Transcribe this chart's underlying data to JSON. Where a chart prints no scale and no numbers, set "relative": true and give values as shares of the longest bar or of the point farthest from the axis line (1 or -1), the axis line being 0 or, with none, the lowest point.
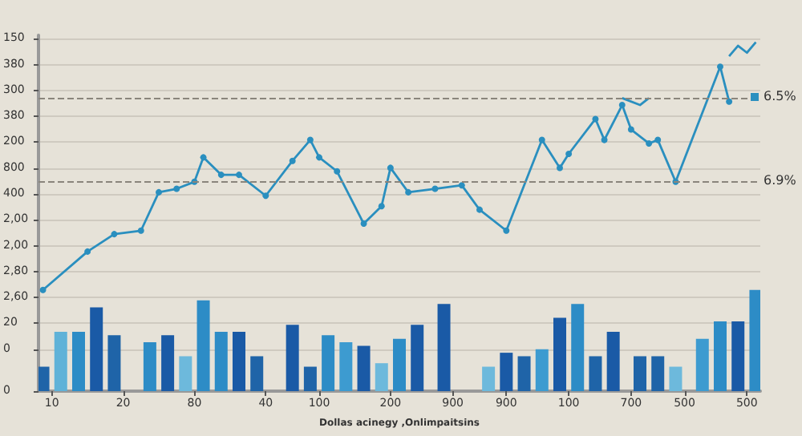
{
  "chart_data": {
    "type": "bar",
    "relative": true,
    "xlabel": "Dollas acinegy ,Onlimpaitsins",
    "categories": [
      null,
      "10",
      null,
      null,
      null,
      null,
      null,
      null,
      null,
      "20",
      null,
      null,
      null,
      null,
      null,
      null,
      null,
      "80",
      null,
      null,
      null,
      null,
      null,
      null,
      null,
      "40",
      null,
      null,
      null,
      null,
      null,
      "100",
      null,
      null,
      null,
      null,
      null,
      null,
      null,
      "200",
      null,
      null,
      null,
      null,
      null,
      null,
      "900",
      null,
      null,
      null,
      null,
      null,
      "900",
      null,
      null,
      null,
      null,
      null,
      null,
      "100",
      null,
      null,
      null,
      null,
      null,
      null,
      "700",
      null,
      null,
      null,
      null,
      null,
      "500",
      null,
      null,
      null,
      null,
      null,
      null,
      "500",
      null
    ],
    "annotations": [
      "150",
      "380",
      "300",
      "380",
      "200",
      "800",
      "400",
      "2,00",
      "2,00",
      "2,80",
      "2,60",
      "20",
      "0",
      "0",
      "6.5%",
      "6.9%"
    ],
    "grid": "y",
    "marker": "circle",
    "ref_lines": [
      {
        "axis": "y",
        "value": 0.84,
        "color": "#8a857c",
        "line_style": "dashed"
      },
      {
        "axis": "y",
        "value": 0.6,
        "color": "#8a857c",
        "line_style": "dashed"
      }
    ],
    "series": [
      {
        "values": [
          0.07,
          null,
          0.17,
          null,
          0.17,
          null,
          0.24,
          null,
          0.16,
          null,
          null,
          null,
          0.14,
          null,
          0.16,
          null,
          0.1,
          null,
          0.26,
          null,
          0.17,
          null,
          0.17,
          null,
          0.1,
          null,
          null,
          null,
          0.19,
          null,
          0.07,
          null,
          0.16,
          null,
          0.14,
          null,
          0.13,
          null,
          0.08,
          null,
          0.15,
          null,
          0.19,
          null,
          null,
          0.25,
          null,
          null,
          null,
          null,
          0.07,
          null,
          0.11,
          null,
          0.1,
          null,
          0.12,
          null,
          0.21,
          null,
          0.25,
          null,
          0.1,
          null,
          0.17,
          null,
          null,
          0.1,
          null,
          0.1,
          null,
          0.07,
          null,
          null,
          0.15,
          null,
          0.2,
          null,
          0.2,
          null,
          0.29
        ],
        "colors": [
          "#1f64a8",
          null,
          "#5fb2d8",
          null,
          "#2d8cc6",
          null,
          "#1a5aa6",
          null,
          "#1f64a8",
          null,
          null,
          null,
          "#2d8cc6",
          null,
          "#1a5aa6",
          null,
          "#6db9dc",
          null,
          "#2d8cc6",
          null,
          "#2d8cc6",
          null,
          "#1a5aa6",
          null,
          "#1f64a8",
          null,
          null,
          null,
          "#1a5aa6",
          null,
          "#1f64a8",
          null,
          "#2d8cc6",
          null,
          "#3d9bd0",
          null,
          "#1a5aa6",
          null,
          "#6db9dc",
          null,
          "#2d8cc6",
          null,
          "#1a5aa6",
          null,
          null,
          "#1a5aa6",
          null,
          null,
          null,
          null,
          "#6db9dc",
          null,
          "#1a5aa6",
          null,
          "#1f64a8",
          null,
          "#3d9bd0",
          null,
          "#1a5aa6",
          null,
          "#2d8cc6",
          null,
          "#1f64a8",
          null,
          "#1a5aa6",
          null,
          null,
          "#1f64a8",
          null,
          "#1f64a8",
          null,
          "#6db9dc",
          null,
          null,
          "#3d9bd0",
          null,
          "#2d8cc6",
          null,
          "#1a5aa6",
          null,
          "#2d8cc6"
        ]
      },
      {
        "type": "line",
        "color": "#2a8fbf",
        "values": [
          0.29,
          null,
          null,
          null,
          null,
          0.4,
          null,
          null,
          0.45,
          null,
          null,
          0.46,
          null,
          0.57,
          null,
          0.58,
          null,
          0.6,
          0.67,
          null,
          0.62,
          null,
          0.62,
          null,
          null,
          0.56,
          null,
          null,
          0.66,
          null,
          0.72,
          0.67,
          null,
          0.63,
          null,
          null,
          0.48,
          null,
          0.53,
          0.64,
          null,
          0.57,
          null,
          null,
          0.58,
          null,
          null,
          0.59,
          null,
          0.52,
          null,
          null,
          0.46,
          null,
          null,
          null,
          0.72,
          null,
          0.64,
          0.68,
          null,
          null,
          0.78,
          0.72,
          null,
          0.82,
          0.75,
          null,
          0.71,
          0.72,
          null,
          0.6,
          null,
          null,
          null,
          null,
          0.93,
          0.83,
          null,
          null,
          null
        ]
      },
      {
        "type": "line",
        "color": "#2a8fbf",
        "marker": "none",
        "values": [
          null,
          null,
          null,
          null,
          null,
          null,
          null,
          null,
          null,
          null,
          null,
          null,
          null,
          null,
          null,
          null,
          null,
          null,
          null,
          null,
          null,
          null,
          null,
          null,
          null,
          null,
          null,
          null,
          null,
          null,
          null,
          null,
          null,
          null,
          null,
          null,
          null,
          null,
          null,
          null,
          null,
          null,
          null,
          null,
          null,
          null,
          null,
          null,
          null,
          null,
          null,
          null,
          null,
          null,
          null,
          null,
          null,
          null,
          null,
          null,
          null,
          null,
          null,
          null,
          null,
          0.84,
          null,
          0.82,
          0.84,
          null,
          null,
          null,
          null,
          null,
          null,
          null,
          null,
          null,
          null,
          null,
          null
        ]
      },
      {
        "type": "line",
        "color": "#2a8fbf",
        "marker": "none",
        "values": [
          null,
          null,
          null,
          null,
          null,
          null,
          null,
          null,
          null,
          null,
          null,
          null,
          null,
          null,
          null,
          null,
          null,
          null,
          null,
          null,
          null,
          null,
          null,
          null,
          null,
          null,
          null,
          null,
          null,
          null,
          null,
          null,
          null,
          null,
          null,
          null,
          null,
          null,
          null,
          null,
          null,
          null,
          null,
          null,
          null,
          null,
          null,
          null,
          null,
          null,
          null,
          null,
          null,
          null,
          null,
          null,
          null,
          null,
          null,
          null,
          null,
          null,
          null,
          null,
          null,
          null,
          null,
          null,
          null,
          null,
          null,
          null,
          null,
          null,
          null,
          null,
          null,
          0.96,
          0.99,
          0.97,
          1
        ]
      }
    ]
  }
}
